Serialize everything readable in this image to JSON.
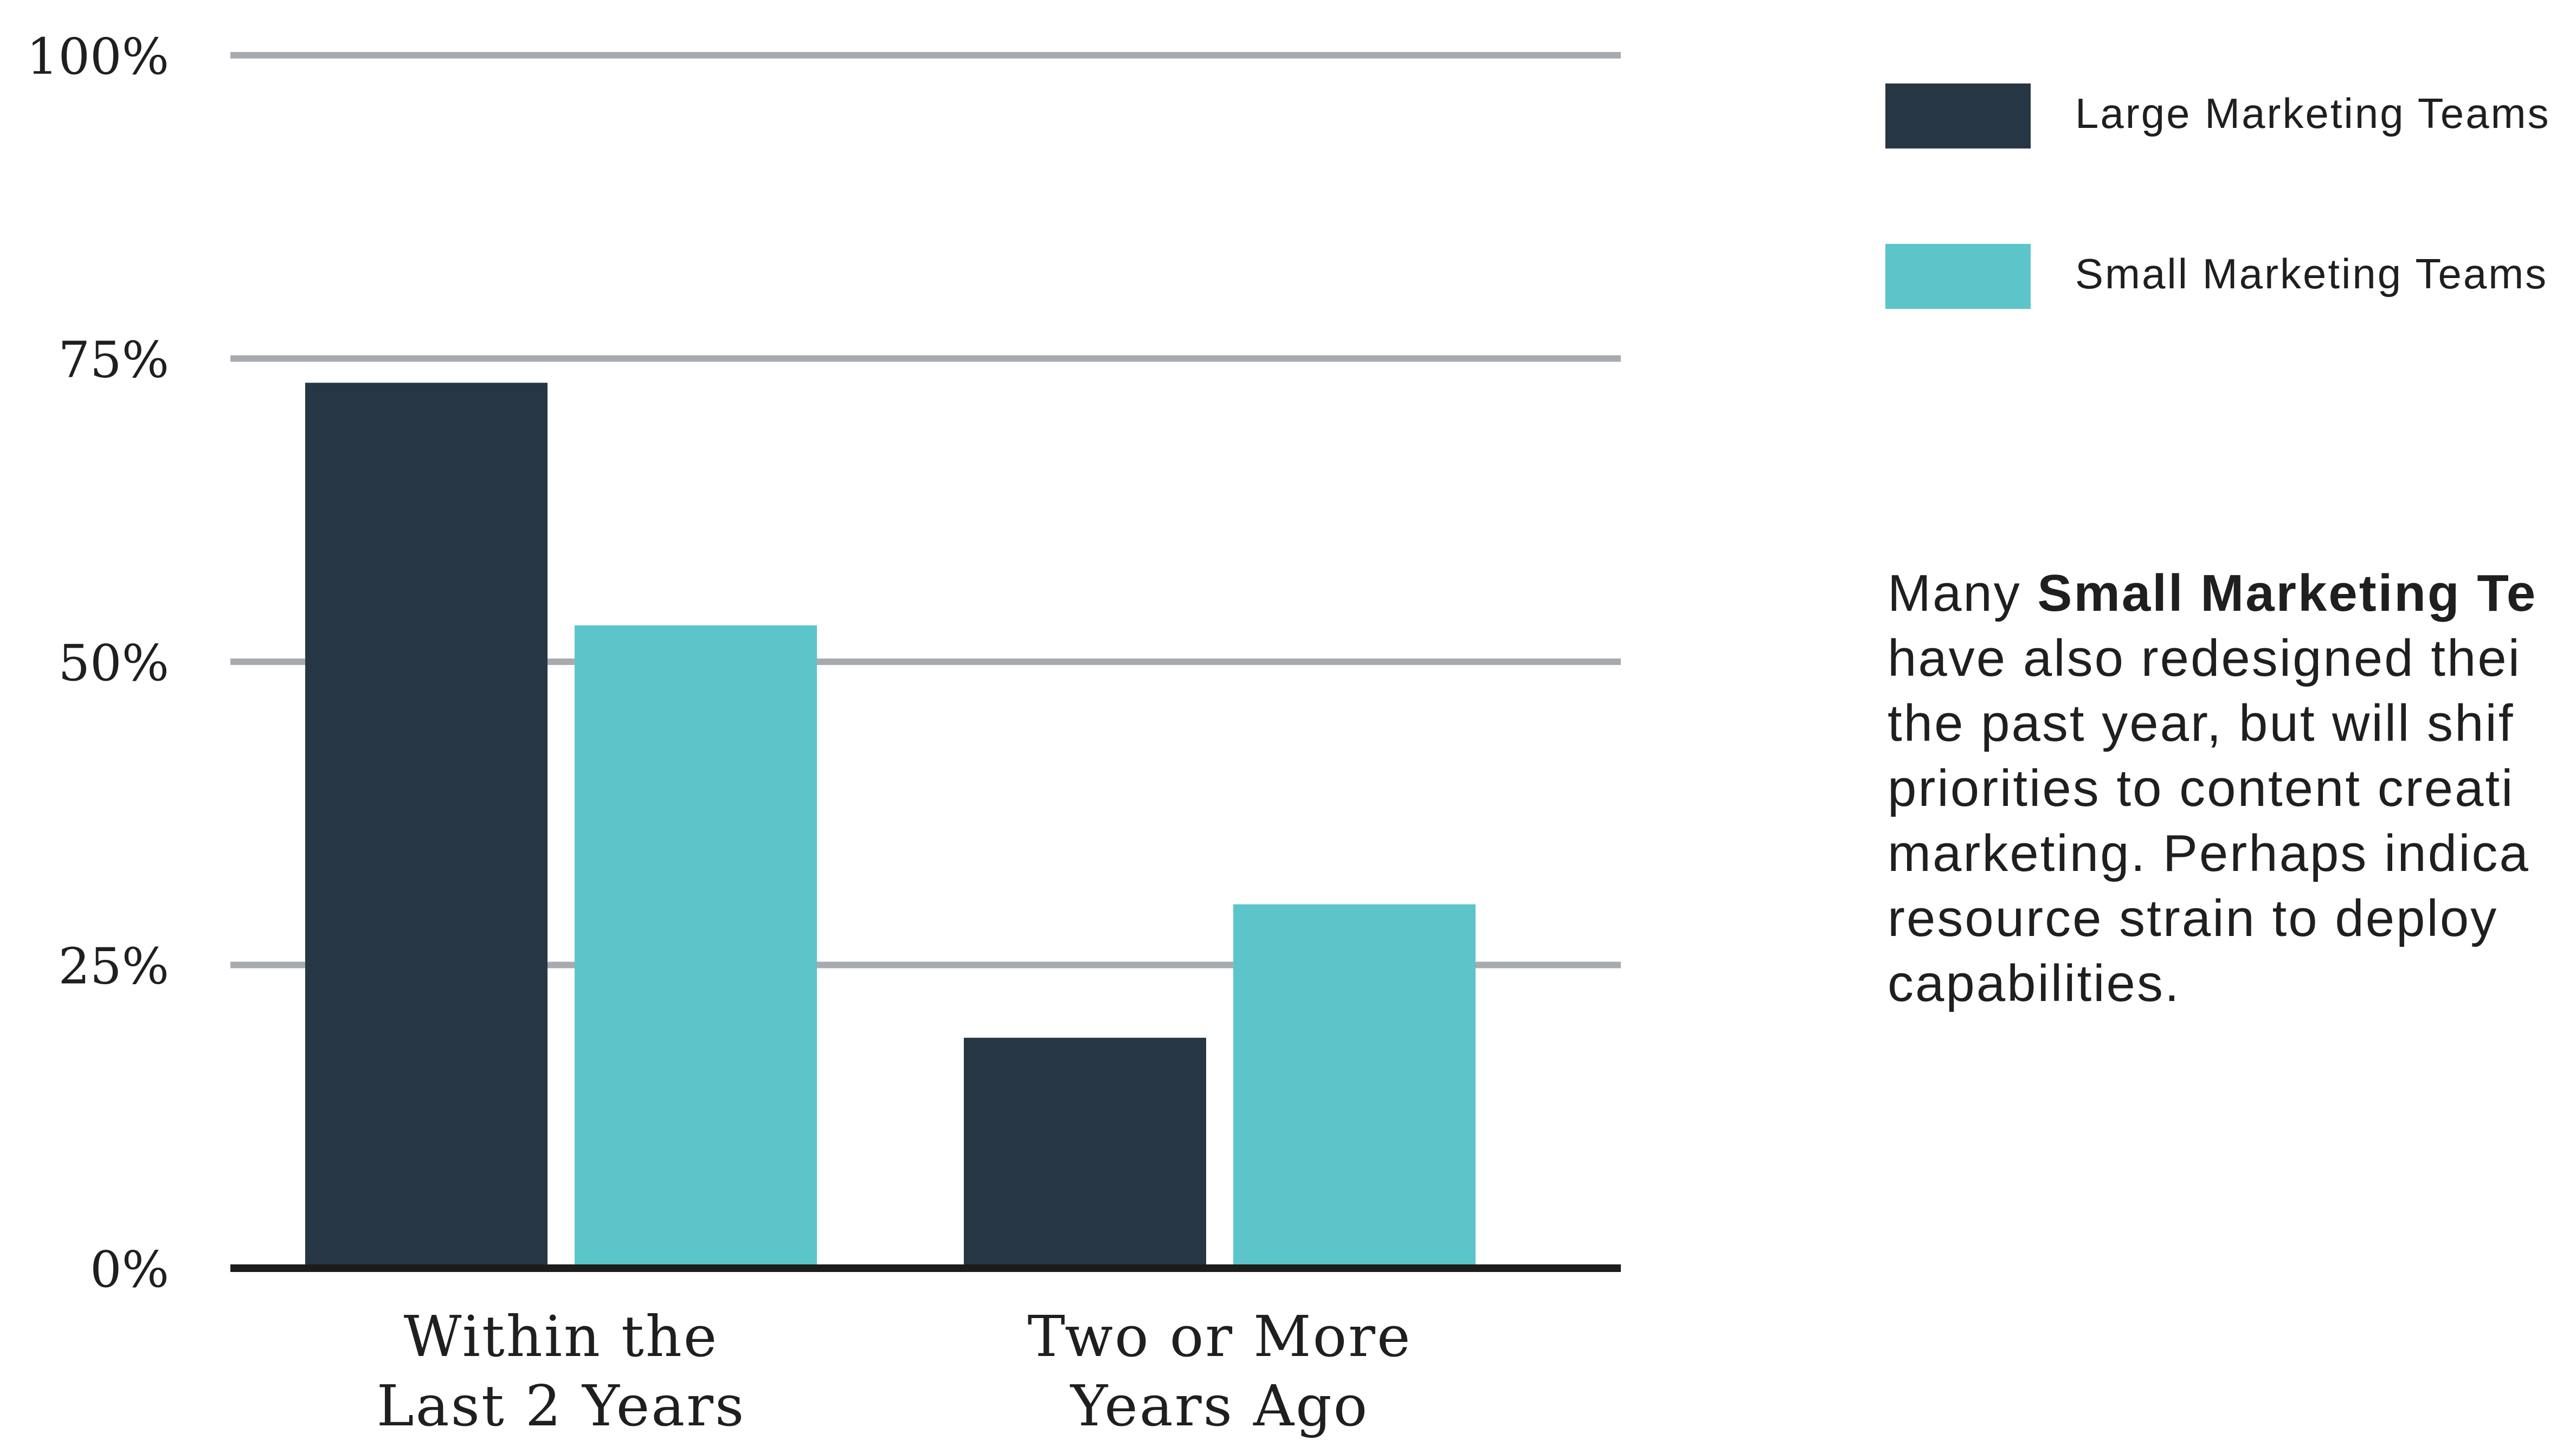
{
  "chart_data": {
    "type": "bar",
    "categories": [
      [
        "Within the",
        "Last 2 Years"
      ],
      [
        "Two or More",
        "Years Ago"
      ]
    ],
    "series": [
      {
        "name": "Large Marketing Teams",
        "values": [
          73,
          19
        ],
        "color": "#263644"
      },
      {
        "name": "Small Marketing Teams",
        "values": [
          53,
          30
        ],
        "color": "#5bc5c9"
      }
    ],
    "ylim": [
      0,
      100
    ],
    "yticks": [
      {
        "value": 0,
        "label": "0%"
      },
      {
        "value": 25,
        "label": "25%"
      },
      {
        "value": 50,
        "label": "50%"
      },
      {
        "value": 75,
        "label": "75%"
      },
      {
        "value": 100,
        "label": "100%"
      }
    ],
    "grid": true,
    "legend_position": "right"
  },
  "legend": {
    "items": [
      {
        "label": "Large Marketing Teams",
        "color": "#263644"
      },
      {
        "label": "Small Marketing Teams",
        "color": "#5bc5c9"
      }
    ]
  },
  "note": {
    "line1_prefix": "Many ",
    "line1_bold": "Small Marketing Te",
    "line2": "have also redesigned thei",
    "line3": "the past year, but will shif",
    "line4": "priorities to content creati",
    "line5": "marketing. Perhaps indica",
    "line6": "resource strain to deploy",
    "line7": "capabilities."
  }
}
